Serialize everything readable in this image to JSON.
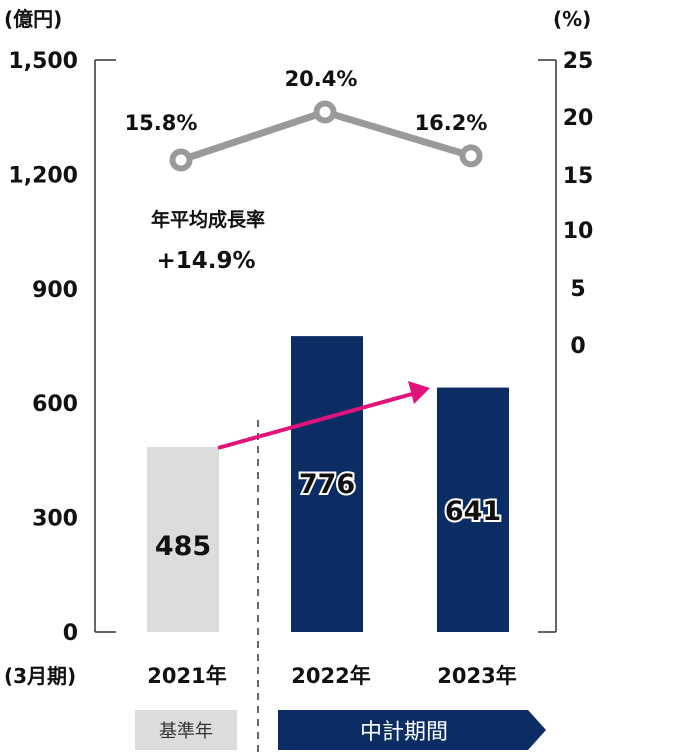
{
  "chart_data": {
    "type": "bar+line",
    "left_axis_unit": "(億円)",
    "right_axis_unit": "(%)",
    "x_axis_unit": "(3月期)",
    "left_ticks": [
      "0",
      "300",
      "600",
      "900",
      "1,200",
      "1,500"
    ],
    "left_tick_values": [
      0,
      300,
      600,
      900,
      1200,
      1500
    ],
    "right_ticks": [
      "0",
      "5",
      "10",
      "15",
      "20",
      "25"
    ],
    "left_ylim": [
      0,
      1500
    ],
    "categories": [
      "2021年",
      "2022年",
      "2023年"
    ],
    "bars": {
      "values": [
        485,
        776,
        641
      ],
      "labels": [
        "485",
        "776",
        "641"
      ],
      "colors": [
        "#dcdcdc",
        "#0c2d64",
        "#0c2d64"
      ]
    },
    "line": {
      "values": [
        15.8,
        20.4,
        16.2
      ],
      "labels": [
        "15.8%",
        "20.4%",
        "16.2%"
      ],
      "color": "#9a9a9a"
    },
    "annotation": {
      "line1": "年平均成長率",
      "line2": "+14.9%"
    },
    "arrow_color": "#e0137b",
    "bands": {
      "base": "基準年",
      "plan": "中計期間",
      "plan_color": "#0c2d64",
      "base_color": "#dcdcdc"
    }
  }
}
